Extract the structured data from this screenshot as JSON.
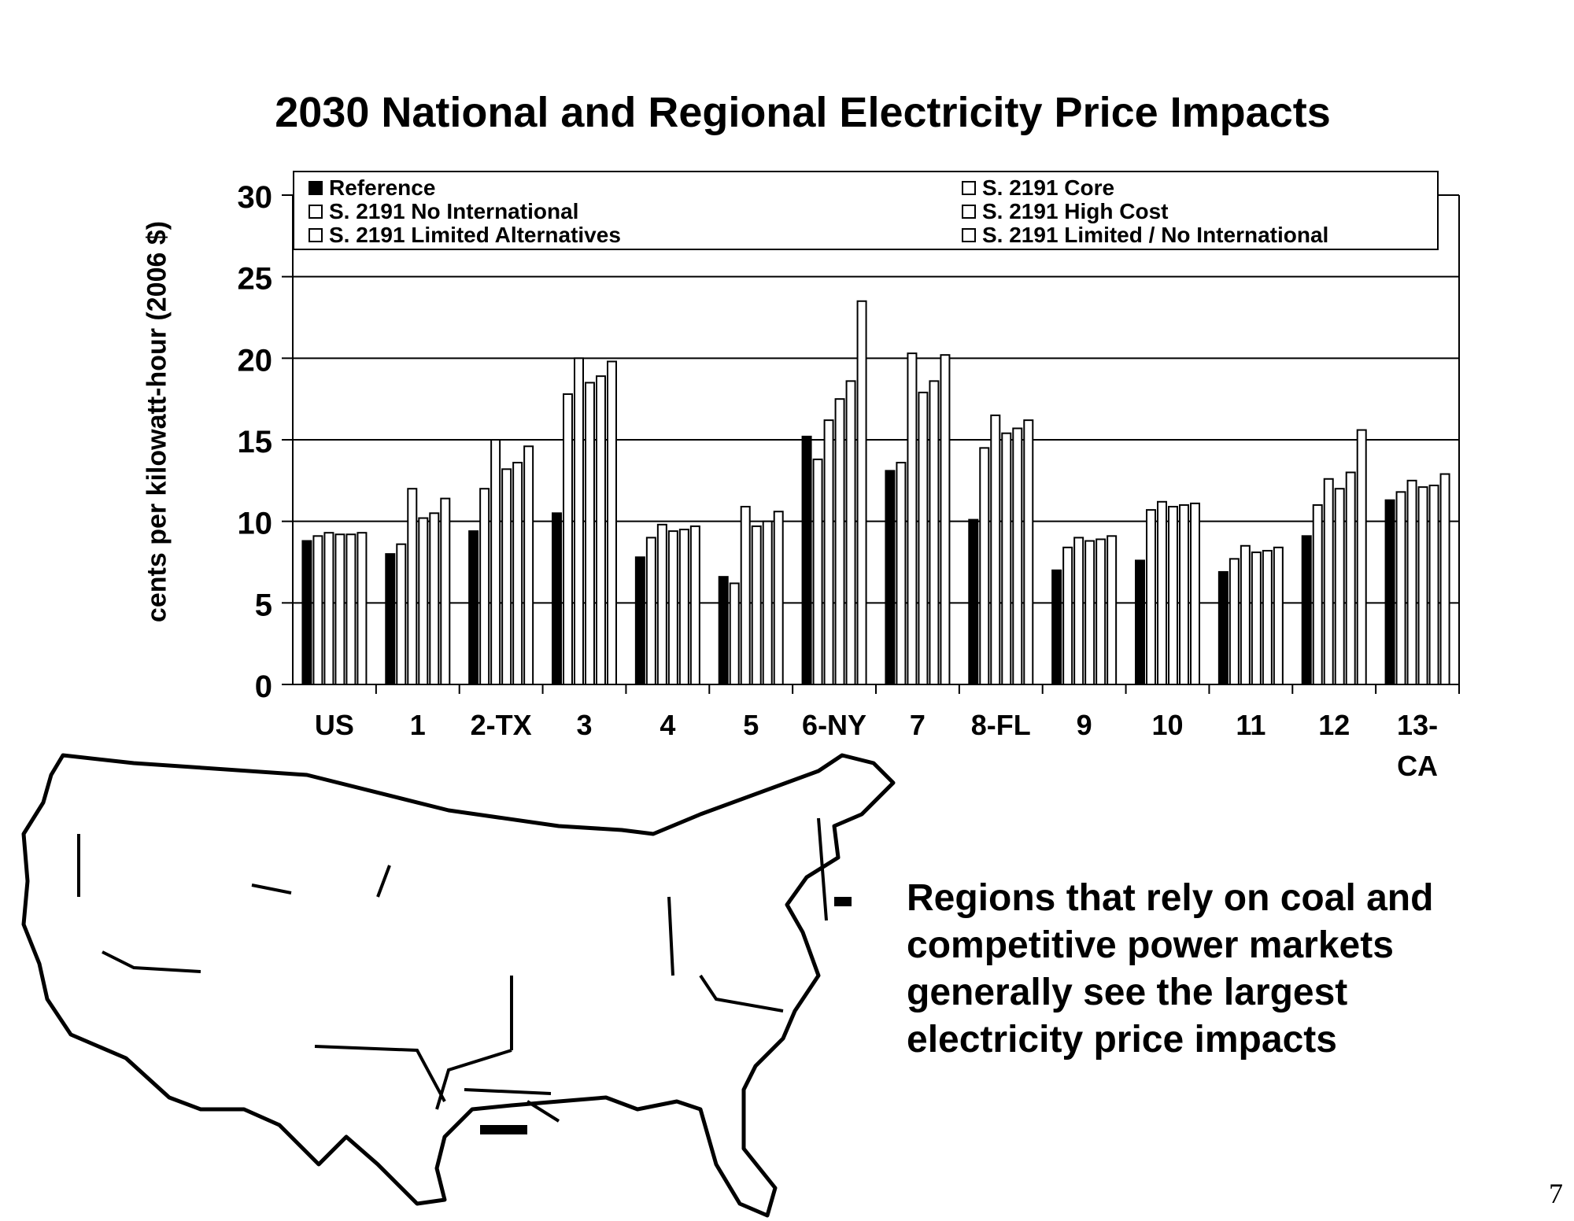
{
  "slide": {
    "title": "2030 National and Regional Electricity Price Impacts",
    "caption": "Regions that rely on coal and\ncompetitive power markets\ngenerally see the largest\nelectricity price impacts",
    "page_number": "7",
    "map_icon": "us-regions-map"
  },
  "legend": {
    "left": [
      {
        "label": "Reference",
        "fill": "#000000"
      },
      {
        "label": "S. 2191 No International",
        "fill": "#ffffff"
      },
      {
        "label": "S. 2191 Limited Alternatives",
        "fill": "#ffffff"
      }
    ],
    "right": [
      {
        "label": "S. 2191 Core",
        "fill": "#ffffff"
      },
      {
        "label": "S. 2191 High Cost",
        "fill": "#ffffff"
      },
      {
        "label": "S. 2191 Limited / No International",
        "fill": "#ffffff"
      }
    ]
  },
  "chart_data": {
    "type": "bar",
    "title": "2030 National and Regional Electricity Price Impacts",
    "ylabel": "cents per kilowatt-hour (2006 $)",
    "xlabel": "",
    "ylim": [
      0,
      30
    ],
    "yticks": [
      0,
      5,
      10,
      15,
      20,
      25,
      30
    ],
    "grid": true,
    "legend_position": "top",
    "categories": [
      "US",
      "1",
      "2-TX",
      "3",
      "4",
      "5",
      "6-NY",
      "7",
      "8-FL",
      "9",
      "10",
      "11",
      "12",
      "13-CA"
    ],
    "series": [
      {
        "name": "Reference",
        "color": "#000000",
        "values": [
          8.8,
          8.0,
          9.4,
          10.5,
          7.8,
          6.6,
          15.2,
          13.1,
          10.1,
          7.0,
          7.6,
          6.9,
          9.1,
          11.3
        ]
      },
      {
        "name": "S. 2191 Core",
        "color": "#ffffff",
        "values": [
          9.1,
          8.6,
          12.0,
          17.8,
          9.0,
          6.2,
          13.8,
          13.6,
          14.5,
          8.4,
          10.7,
          7.7,
          11.0,
          11.8
        ]
      },
      {
        "name": "S. 2191 High Cost",
        "color": "#ffffff",
        "values": [
          9.3,
          12.0,
          15.0,
          20.0,
          9.8,
          10.9,
          16.2,
          20.3,
          16.5,
          9.0,
          11.2,
          8.5,
          12.6,
          12.5
        ]
      },
      {
        "name": "S. 2191 No International",
        "color": "#ffffff",
        "values": [
          9.2,
          10.2,
          13.2,
          18.5,
          9.4,
          9.7,
          17.5,
          17.9,
          15.4,
          8.8,
          10.9,
          8.1,
          12.0,
          12.1
        ]
      },
      {
        "name": "S. 2191 Limited Alternatives",
        "color": "#ffffff",
        "values": [
          9.2,
          10.5,
          13.6,
          18.9,
          9.5,
          10.0,
          18.6,
          18.6,
          15.7,
          8.9,
          11.0,
          8.2,
          13.0,
          12.2
        ]
      },
      {
        "name": "S. 2191 Limited / No International",
        "color": "#ffffff",
        "values": [
          9.3,
          11.4,
          14.6,
          19.8,
          9.7,
          10.6,
          23.5,
          20.2,
          16.2,
          9.1,
          11.1,
          8.4,
          15.6,
          12.9
        ]
      }
    ]
  }
}
